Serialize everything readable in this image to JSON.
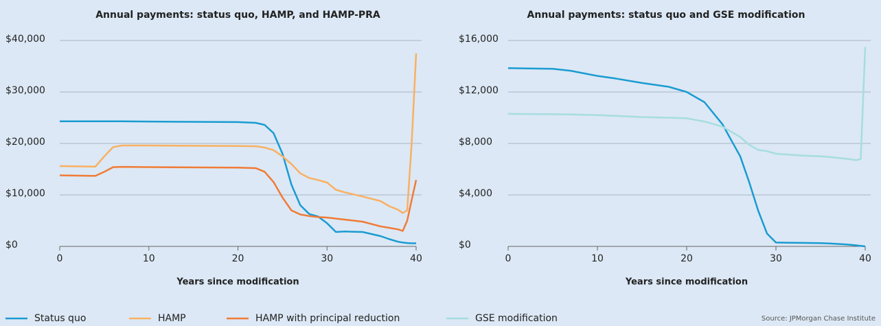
{
  "chart_data": [
    {
      "type": "line",
      "title": "Annual payments: status quo, HAMP, and HAMP-PRA",
      "x_label": "Years since modification",
      "x": [
        0,
        4,
        5,
        6,
        7,
        10,
        20,
        22,
        23,
        24,
        25,
        26,
        27,
        28,
        29,
        30,
        31,
        32,
        34,
        36,
        37,
        38,
        38.5,
        39,
        39.5,
        40
      ],
      "series": [
        {
          "name": "Status quo",
          "color": "#1a9bd1",
          "values": [
            24300,
            24300,
            24300,
            24300,
            24300,
            24250,
            24150,
            24000,
            23600,
            22000,
            18000,
            12000,
            8000,
            6300,
            5800,
            4500,
            2800,
            2900,
            2800,
            2000,
            1400,
            900,
            750,
            650,
            600,
            600
          ]
        },
        {
          "name": "HAMP",
          "color": "#f9b062",
          "values": [
            15600,
            15500,
            17500,
            19300,
            19600,
            19600,
            19500,
            19450,
            19200,
            18700,
            17500,
            16000,
            14200,
            13300,
            12900,
            12400,
            11000,
            10500,
            9700,
            8800,
            7800,
            7100,
            6500,
            7000,
            20000,
            37500
          ]
        },
        {
          "name": "HAMP with principal reduction",
          "color": "#f07b35",
          "values": [
            13800,
            13700,
            14500,
            15400,
            15450,
            15400,
            15300,
            15200,
            14500,
            12500,
            9500,
            7000,
            6200,
            5900,
            5700,
            5600,
            5400,
            5200,
            4800,
            3900,
            3600,
            3300,
            3000,
            5000,
            9000,
            12900
          ]
        }
      ],
      "xlim": [
        0,
        40
      ],
      "xticks": [
        0,
        10,
        20,
        30,
        40
      ],
      "ylim": [
        0,
        40000
      ],
      "yticks": [
        {
          "value": 0,
          "label": "$0"
        },
        {
          "value": 10000,
          "label": "$10,000"
        },
        {
          "value": 20000,
          "label": "$20,000"
        },
        {
          "value": 30000,
          "label": "$30,000"
        },
        {
          "value": 40000,
          "label": "$40,000"
        }
      ],
      "grid": true
    },
    {
      "type": "line",
      "title": "Annual payments: status quo and GSE modification",
      "x_label": "Years since modification",
      "x": [
        0,
        5,
        7,
        10,
        12,
        15,
        18,
        20,
        22,
        24,
        26,
        27,
        28,
        29,
        30,
        33,
        35,
        36,
        38,
        39,
        39.5,
        40
      ],
      "series": [
        {
          "name": "Status quo",
          "color": "#1a9bd1",
          "values": [
            13850,
            13800,
            13650,
            13250,
            13050,
            12700,
            12400,
            12000,
            11200,
            9500,
            7000,
            5000,
            2800,
            1000,
            300,
            270,
            250,
            230,
            150,
            80,
            40,
            0
          ]
        },
        {
          "name": "GSE modification",
          "color": "#a6dde0",
          "values": [
            10300,
            10270,
            10250,
            10200,
            10150,
            10050,
            10000,
            9950,
            9700,
            9300,
            8500,
            7900,
            7500,
            7400,
            7200,
            7050,
            7000,
            6950,
            6800,
            6700,
            6800,
            15500
          ]
        }
      ],
      "xlim": [
        0,
        40
      ],
      "xticks": [
        0,
        10,
        20,
        30,
        40
      ],
      "ylim": [
        0,
        16000
      ],
      "yticks": [
        {
          "value": 0,
          "label": "$0"
        },
        {
          "value": 4000,
          "label": "$4,000"
        },
        {
          "value": 8000,
          "label": "$8,000"
        },
        {
          "value": 12000,
          "label": "$12,000"
        },
        {
          "value": 16000,
          "label": "$16,000"
        }
      ],
      "grid": true
    }
  ],
  "source": "Source: JPMorgan Chase Institute"
}
